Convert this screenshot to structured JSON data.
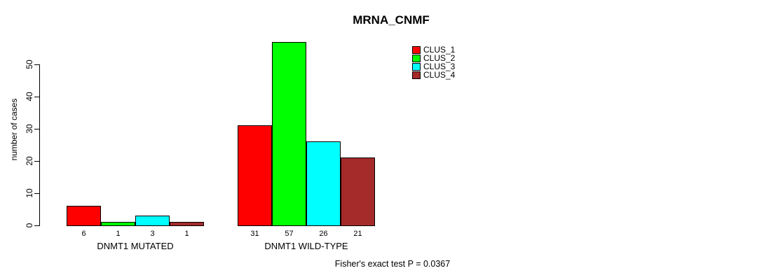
{
  "chart_data": {
    "type": "bar",
    "title": "MRNA_CNMF",
    "ylabel": "number of cases",
    "xlabel": "",
    "ylim": [
      0,
      57.5
    ],
    "yticks": [
      0,
      10,
      20,
      30,
      40,
      50
    ],
    "grid": false,
    "legend_position": "top-right",
    "categories": [
      "DNMT1 MUTATED",
      "DNMT1 WILD-TYPE"
    ],
    "series": [
      {
        "name": "CLUS_1",
        "color": "#FF0000",
        "values": [
          6,
          31
        ]
      },
      {
        "name": "CLUS_2",
        "color": "#00FF00",
        "values": [
          1,
          57
        ]
      },
      {
        "name": "CLUS_3",
        "color": "#00FFFF",
        "values": [
          3,
          26
        ]
      },
      {
        "name": "CLUS_4",
        "color": "#A52A2A",
        "values": [
          1,
          21
        ]
      }
    ],
    "bar_value_labels": [
      [
        "6",
        "1",
        "3",
        "1"
      ],
      [
        "31",
        "57",
        "26",
        "21"
      ]
    ],
    "annotation": "Fisher's exact test P = 0.0367"
  }
}
